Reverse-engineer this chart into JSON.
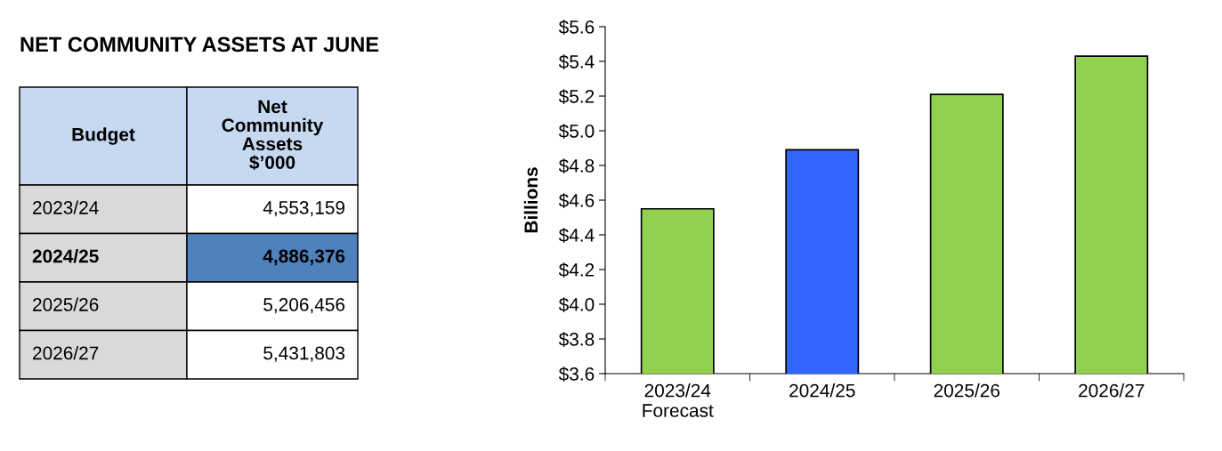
{
  "chart_data": [
    {
      "type": "other",
      "title": "NET COMMUNITY ASSETS AT JUNE",
      "annotations": [
        "Budget",
        "Net\nCommunity\nAssets\n$’000",
        "2023/24",
        "4,553,159",
        "2024/25",
        "4,886,376",
        "2025/26",
        "5,206,456",
        "2026/27",
        "5,431,803"
      ]
    },
    {
      "type": "bar",
      "ylabel": "Billions",
      "categories": [
        "2023/24\nForecast",
        "2024/25",
        "2025/26",
        "2026/27"
      ],
      "values": [
        4.55,
        4.89,
        5.21,
        5.43
      ],
      "colors": [
        "#92d050",
        "#3366ff",
        "#92d050",
        "#92d050"
      ],
      "ylim": [
        3.6,
        5.6
      ],
      "yticks": [
        {
          "value": 3.6,
          "label": "$3.6"
        },
        {
          "value": 3.8,
          "label": "$3.8"
        },
        {
          "value": 4.0,
          "label": "$4.0"
        },
        {
          "value": 4.2,
          "label": "$4.2"
        },
        {
          "value": 4.4,
          "label": "$4.4"
        },
        {
          "value": 4.6,
          "label": "$4.6"
        },
        {
          "value": 4.8,
          "label": "$4.8"
        },
        {
          "value": 5.0,
          "label": "$5.0"
        },
        {
          "value": 5.2,
          "label": "$5.2"
        },
        {
          "value": 5.4,
          "label": "$5.4"
        },
        {
          "value": 5.6,
          "label": "$5.6"
        }
      ]
    }
  ]
}
